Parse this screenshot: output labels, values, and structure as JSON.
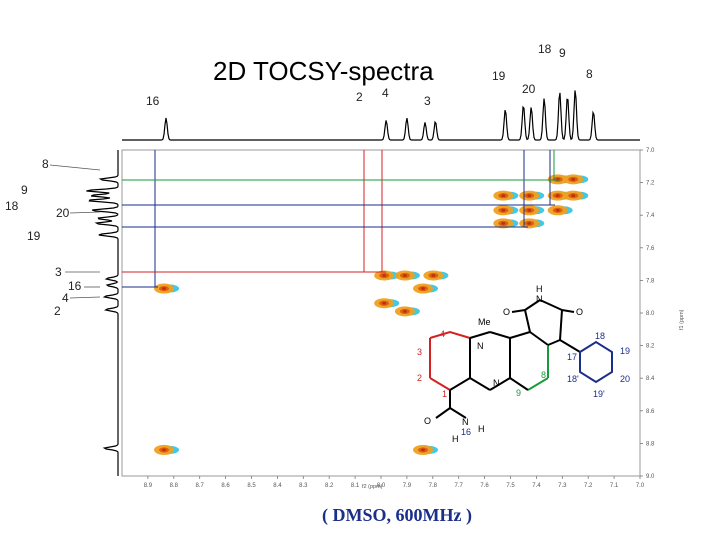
{
  "title": "2D TOCSY-spectra",
  "caption": "( DMSO, 600MHz )",
  "solvent": "DMSO",
  "frequency": "600MHz",
  "top_labels": [
    "16",
    "2",
    "4",
    "3",
    "19",
    "20",
    "18",
    "9",
    "8"
  ],
  "left_labels": [
    "8",
    "9",
    "18",
    "20",
    "19",
    "3",
    "16",
    "4",
    "2"
  ],
  "x_axis_label": "f2 (ppm)",
  "y_axis_label": "f1 (ppm)",
  "molecule_labels": [
    "H",
    "N",
    "Me",
    "4",
    "3",
    "2",
    "1",
    "N",
    "N",
    "8",
    "9",
    "17",
    "18",
    "19",
    "20",
    "18'",
    "19'",
    "N",
    "H",
    "H",
    "16",
    "O",
    "O",
    "O"
  ],
  "colors": {
    "red": "#d42020",
    "blue": "#1a2e8a",
    "green": "#1a9a3a",
    "orange": "#f0a020",
    "cyan": "#20c0e0"
  },
  "chart_data": {
    "type": "heatmap",
    "title": "",
    "xlabel": "f2 (ppm)",
    "ylabel": "f1 (ppm)",
    "xlim": [
      9.0,
      7.0
    ],
    "ylim": [
      7.0,
      9.0
    ],
    "x_ticks": [
      "8.9",
      "8.8",
      "8.7",
      "8.6",
      "8.5",
      "8.4",
      "8.3",
      "8.2",
      "8.1",
      "8.0",
      "7.9",
      "7.8",
      "7.7",
      "7.6",
      "7.5",
      "7.4",
      "7.3",
      "7.2",
      "7.1",
      "7.0"
    ],
    "y_ticks": [
      "7.0",
      "7.2",
      "7.4",
      "7.6",
      "7.8",
      "8.0",
      "8.2",
      "8.4",
      "8.6",
      "8.8",
      "9.0"
    ],
    "cross_peaks": [
      {
        "x": 7.31,
        "y": 7.18
      },
      {
        "x": 7.25,
        "y": 7.18
      },
      {
        "x": 7.52,
        "y": 7.28
      },
      {
        "x": 7.42,
        "y": 7.28
      },
      {
        "x": 7.31,
        "y": 7.28
      },
      {
        "x": 7.25,
        "y": 7.28
      },
      {
        "x": 7.52,
        "y": 7.37
      },
      {
        "x": 7.42,
        "y": 7.37
      },
      {
        "x": 7.31,
        "y": 7.37
      },
      {
        "x": 7.52,
        "y": 7.45
      },
      {
        "x": 7.42,
        "y": 7.45
      },
      {
        "x": 7.98,
        "y": 7.77
      },
      {
        "x": 7.9,
        "y": 7.77
      },
      {
        "x": 7.79,
        "y": 7.77
      },
      {
        "x": 8.83,
        "y": 7.85
      },
      {
        "x": 7.83,
        "y": 7.85
      },
      {
        "x": 7.98,
        "y": 7.94
      },
      {
        "x": 7.9,
        "y": 7.99
      },
      {
        "x": 8.83,
        "y": 8.84
      },
      {
        "x": 7.83,
        "y": 8.84
      }
    ]
  }
}
